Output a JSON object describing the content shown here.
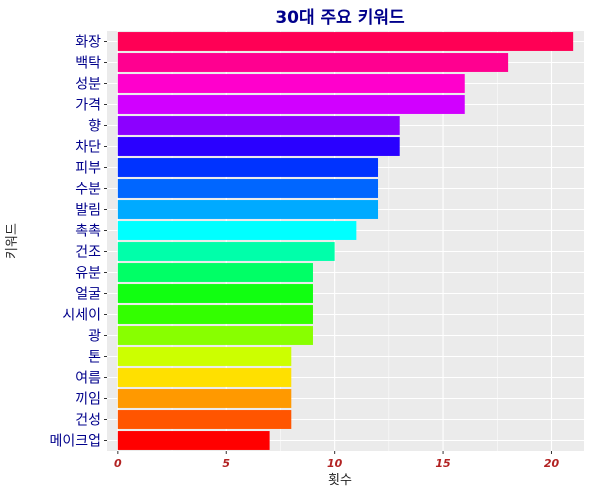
{
  "chart_data": {
    "type": "bar",
    "orientation": "horizontal",
    "title": "30대 주요 키워드",
    "xlabel": "횟수",
    "ylabel": "키워드",
    "xlim": [
      -0.5,
      21.5
    ],
    "x_ticks": [
      0,
      5,
      10,
      15,
      20
    ],
    "grid": true,
    "background": "#EBEBEB",
    "categories": [
      "화장",
      "백탁",
      "성분",
      "가격",
      "향",
      "차단",
      "피부",
      "수분",
      "발림",
      "촉촉",
      "건조",
      "유분",
      "얼굴",
      "시세이",
      "광",
      "톤",
      "여름",
      "끼임",
      "건성",
      "메이크업"
    ],
    "values": [
      21,
      18,
      16,
      16,
      13,
      13,
      12,
      12,
      12,
      11,
      10,
      9,
      9,
      9,
      9,
      8,
      8,
      8,
      8,
      7
    ],
    "colors": [
      "#FF0055",
      "#FF0090",
      "#FF00CC",
      "#D100FF",
      "#8C00FF",
      "#2A00FF",
      "#0033FF",
      "#0066FF",
      "#00AAFF",
      "#00FFFF",
      "#00FFAA",
      "#00FF66",
      "#11FF11",
      "#33FF00",
      "#88FF00",
      "#CCFF00",
      "#FFE000",
      "#FF9900",
      "#FF5500",
      "#FF0000"
    ]
  }
}
